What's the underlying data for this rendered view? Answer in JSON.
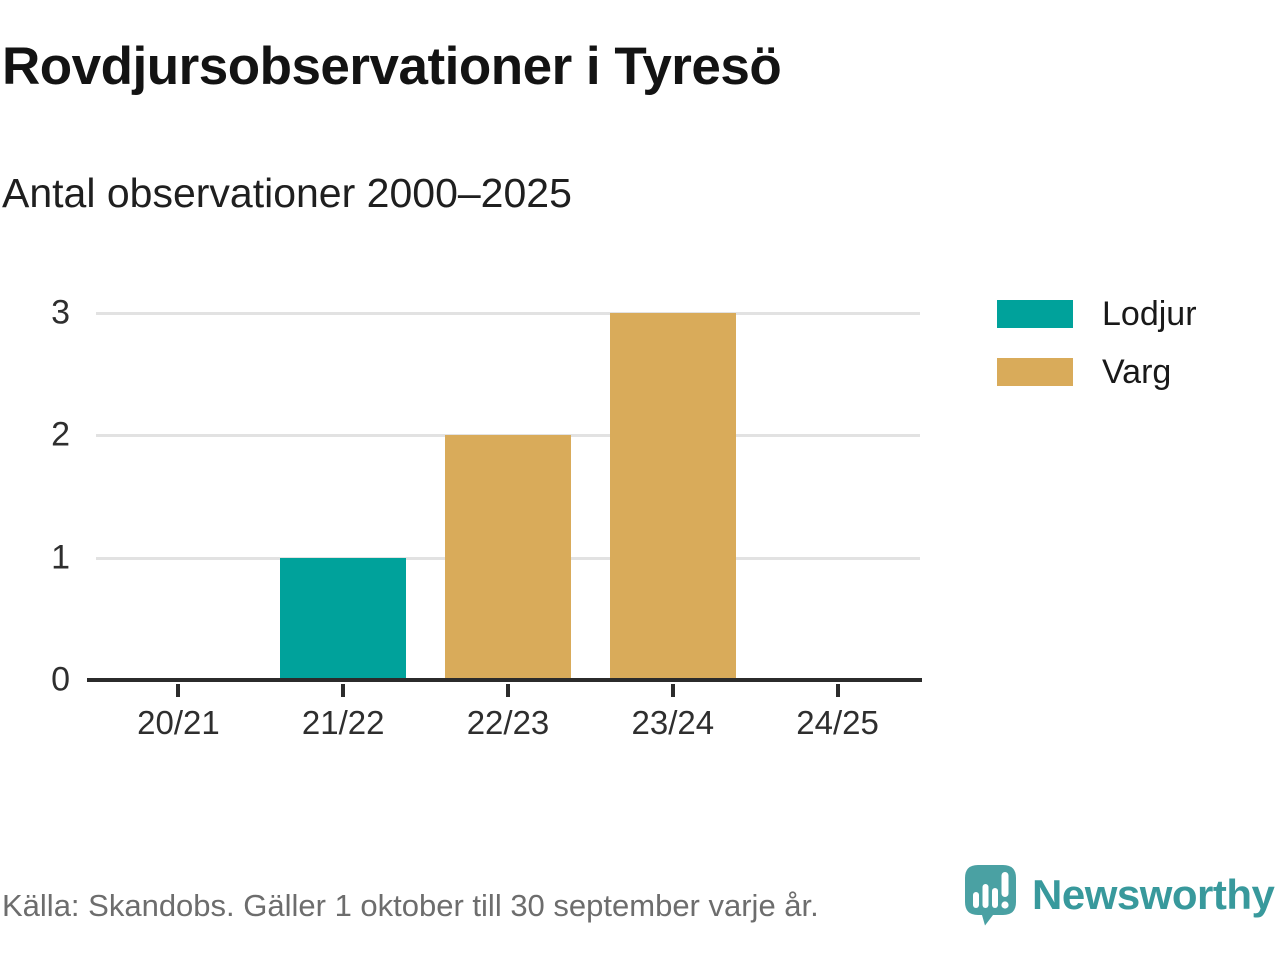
{
  "header": {
    "title": "Rovdjursobservationer i Tyresö",
    "subtitle": "Antal observationer 2000–2025"
  },
  "chart_data": {
    "type": "bar",
    "title": "Rovdjursobservationer i Tyresö",
    "subtitle": "Antal observationer 2000–2025",
    "categories": [
      "20/21",
      "21/22",
      "22/23",
      "23/24",
      "24/25"
    ],
    "series": [
      {
        "name": "Lodjur",
        "color": "#00a29b",
        "values": [
          0,
          1,
          0,
          0,
          0
        ]
      },
      {
        "name": "Varg",
        "color": "#d9ab5a",
        "values": [
          0,
          0,
          2,
          3,
          0
        ]
      }
    ],
    "ylim": [
      0,
      3
    ],
    "yticks": [
      0,
      1,
      2,
      3
    ],
    "grid": "horizontal",
    "legend_position": "right",
    "xlabel": "",
    "ylabel": ""
  },
  "footer": {
    "source": "Källa: Skandobs. Gäller 1 oktober till 30 september varje år.",
    "brand": "Newsworthy"
  },
  "colors": {
    "axis": "#2b2b2b",
    "gridline": "#e2e2e2",
    "logo_teal": "#4aa1a3",
    "brand_teal": "#38999c"
  }
}
